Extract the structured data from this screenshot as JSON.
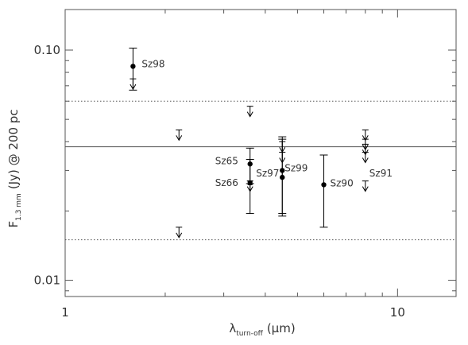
{
  "chart_data": {
    "type": "scatter",
    "title": "",
    "x_scale": "log",
    "y_scale": "log",
    "xlim": [
      1.0,
      15.0
    ],
    "ylim": [
      0.0085,
      0.15
    ],
    "xlabel": {
      "main": "λ",
      "sub": "turn-off",
      "rest": "(μm)"
    },
    "ylabel": {
      "main": "F",
      "sub": "1.3 mm",
      "rest": "(Jy) @ 200 pc"
    },
    "x_ticks": [
      {
        "value": 1,
        "label": "1"
      },
      {
        "value": 10,
        "label": "10"
      }
    ],
    "y_ticks": [
      {
        "value": 0.01,
        "label": "0.01"
      },
      {
        "value": 0.1,
        "label": "0.10"
      }
    ],
    "reference_lines": [
      {
        "y": 0.038,
        "style": "solid"
      },
      {
        "y": 0.06,
        "style": "dotted"
      },
      {
        "y": 0.015,
        "style": "dotted"
      }
    ],
    "detections": [
      {
        "label": "Sz98",
        "x": 1.6,
        "y": 0.085,
        "y_low": 0.067,
        "y_high": 0.102,
        "marker": "circle",
        "label_side": "right"
      },
      {
        "label": "Sz65",
        "x": 3.6,
        "y": 0.032,
        "y_low": 0.0263,
        "y_high": 0.0375,
        "marker": "circle",
        "label_side": "left"
      },
      {
        "label": "Sz66",
        "x": 3.6,
        "y": 0.0265,
        "y_low": 0.0195,
        "y_high": 0.0335,
        "marker": "square",
        "label_side": "left"
      },
      {
        "label": "Sz97",
        "x": 4.5,
        "y": 0.028,
        "y_low": 0.019,
        "y_high": 0.041,
        "marker": "circle",
        "label_side": "left"
      },
      {
        "label": "Sz99",
        "x": 4.5,
        "y": 0.03,
        "y_low": 0.0195,
        "y_high": 0.042,
        "marker": "circle",
        "label_side": "right"
      },
      {
        "label": "Sz90",
        "x": 6.0,
        "y": 0.026,
        "y_low": 0.017,
        "y_high": 0.035,
        "marker": "circle",
        "label_side": "right"
      },
      {
        "label": "Sz91",
        "x": 8.0,
        "y": 0.0,
        "y_low": null,
        "y_high": null,
        "marker": "none",
        "label_side": "right"
      }
    ],
    "upper_limits": [
      {
        "x": 1.6,
        "y": 0.075
      },
      {
        "x": 2.2,
        "y": 0.045
      },
      {
        "x": 2.2,
        "y": 0.017
      },
      {
        "x": 3.6,
        "y": 0.057
      },
      {
        "x": 3.6,
        "y": 0.027
      },
      {
        "x": 4.5,
        "y": 0.04
      },
      {
        "x": 4.5,
        "y": 0.036
      },
      {
        "x": 8.0,
        "y": 0.045
      },
      {
        "x": 8.0,
        "y": 0.041
      },
      {
        "x": 8.0,
        "y": 0.039
      },
      {
        "x": 8.0,
        "y": 0.036
      },
      {
        "x": 8.0,
        "y": 0.027
      }
    ],
    "colors": {
      "axes": "#555555",
      "data": "#000000",
      "text": "#333333"
    }
  }
}
